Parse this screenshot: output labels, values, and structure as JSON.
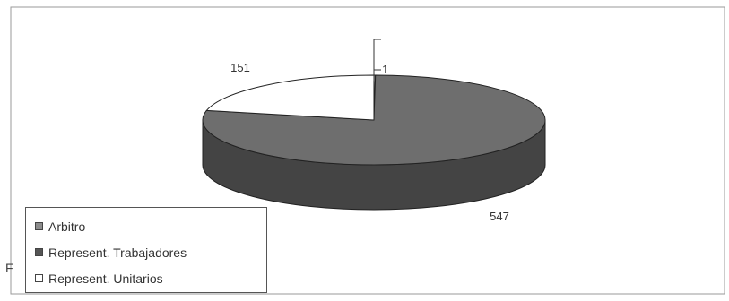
{
  "chart_data": {
    "type": "pie",
    "title": "",
    "categories": [
      "Arbitro",
      "Represent. Trabajadores",
      "Represent. Unitarios"
    ],
    "values": [
      1,
      547,
      151
    ],
    "colors": [
      "#8c8c8c",
      "#6e6e6e",
      "#ffffff"
    ],
    "side_colors": [
      "#5a5a5a",
      "#444444",
      "#d8d8d8"
    ],
    "data_labels": [
      "1",
      "547",
      "151"
    ],
    "legend_position": "bottom-left",
    "style": "3d"
  },
  "legend": {
    "items": [
      {
        "label": "Arbitro",
        "color": "#8c8c8c"
      },
      {
        "label": "Represent. Trabajadores",
        "color": "#555555"
      },
      {
        "label": "Represent. Unitarios",
        "color": "#ffffff"
      }
    ]
  },
  "stray_text": "F"
}
